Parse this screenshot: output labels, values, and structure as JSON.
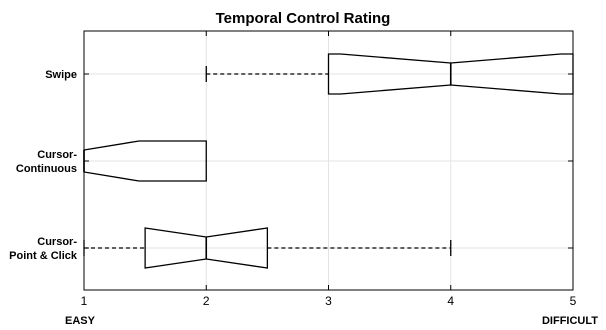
{
  "chart_data": {
    "type": "box",
    "orientation": "horizontal",
    "notched": true,
    "title": "Temporal Control Rating",
    "xlim": [
      1,
      5
    ],
    "xticks": [
      1,
      2,
      3,
      4,
      5
    ],
    "x_end_labels": {
      "left": "EASY",
      "right": "DIFFICULT"
    },
    "grid": true,
    "categories": [
      {
        "label_lines": [
          "Swipe"
        ]
      },
      {
        "label_lines": [
          "Cursor-",
          "Continuous"
        ]
      },
      {
        "label_lines": [
          "Cursor-",
          "Point & Click"
        ]
      }
    ],
    "boxes": [
      {
        "whisker_low": 2,
        "q1": 3,
        "notch_low": 3.1,
        "median": 4,
        "notch_high": 4.9,
        "q3": 5,
        "whisker_high": 5
      },
      {
        "whisker_low": 1,
        "q1": 1,
        "notch_low": 1.45,
        "median": 1,
        "notch_high": 1.45,
        "q3": 2,
        "whisker_high": 2
      },
      {
        "whisker_low": 1,
        "q1": 1.5,
        "notch_low": 1.5,
        "median": 2,
        "notch_high": 2.5,
        "q3": 2.5,
        "whisker_high": 4
      }
    ]
  }
}
